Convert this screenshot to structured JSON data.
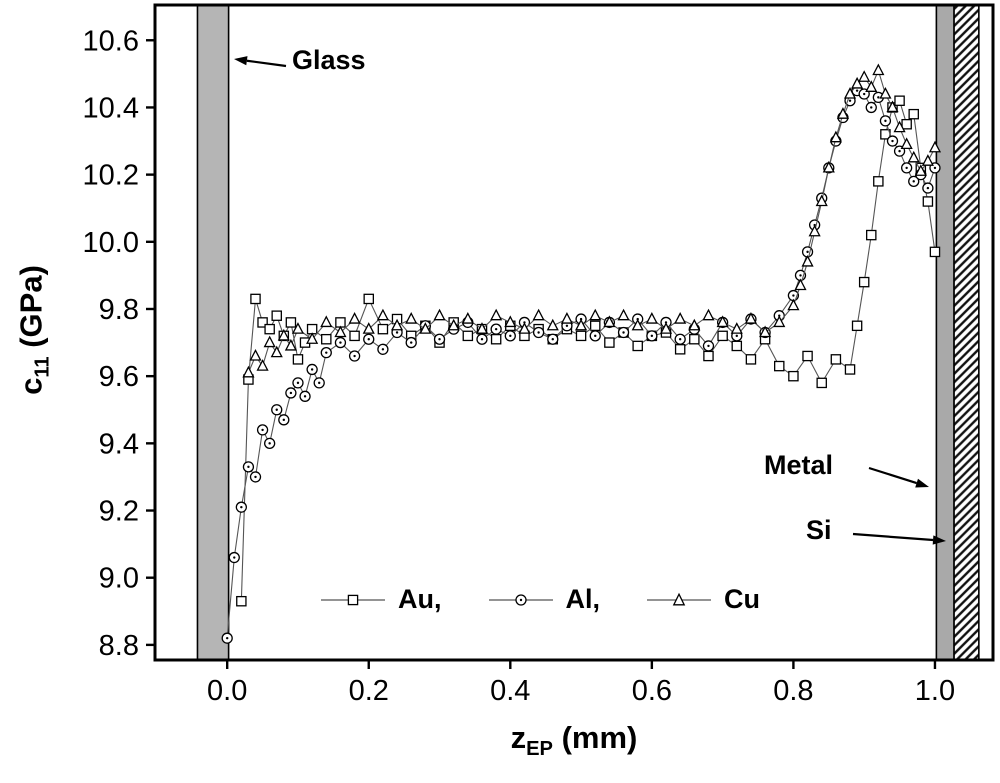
{
  "chart_data": {
    "type": "scatter",
    "title": "",
    "ylabel_main": "c",
    "ylabel_sub": "11",
    "ylabel_rest": "  (GPa)",
    "xlabel_main": "z",
    "xlabel_sub": "EP",
    "xlabel_rest": "  (mm)",
    "xlim": [
      -0.102,
      1.082
    ],
    "ylim": [
      8.755,
      10.705
    ],
    "x_ticks": [
      {
        "v": 0.0,
        "label": "0.0"
      },
      {
        "v": 0.2,
        "label": "0.2"
      },
      {
        "v": 0.4,
        "label": "0.4"
      },
      {
        "v": 0.6,
        "label": "0.6"
      },
      {
        "v": 0.8,
        "label": "0.8"
      },
      {
        "v": 1.0,
        "label": "1.0"
      }
    ],
    "y_ticks": [
      {
        "v": 8.8,
        "label": "8.8"
      },
      {
        "v": 9.0,
        "label": "9.0"
      },
      {
        "v": 9.2,
        "label": "9.2"
      },
      {
        "v": 9.4,
        "label": "9.4"
      },
      {
        "v": 9.6,
        "label": "9.6"
      },
      {
        "v": 9.8,
        "label": "9.8"
      },
      {
        "v": 10.0,
        "label": "10.0"
      },
      {
        "v": 10.2,
        "label": "10.2"
      },
      {
        "v": 10.4,
        "label": "10.4"
      },
      {
        "v": 10.6,
        "label": "10.6"
      }
    ],
    "bands": {
      "glass": {
        "x0": -0.042,
        "x1": 0.002,
        "fill": "#b5b5b5",
        "style": "solid"
      },
      "metal": {
        "x0": 1.002,
        "x1": 1.027,
        "fill": "#a9a9a9",
        "style": "solid"
      },
      "si": {
        "x0": 1.027,
        "x1": 1.062,
        "fill": "#ffffff",
        "style": "hatch"
      }
    },
    "annotations": {
      "glass": {
        "label": "Glass"
      },
      "metal": {
        "label": "Metal"
      },
      "si": {
        "label": "Si"
      }
    },
    "legend": [
      {
        "label": "Au,",
        "marker": "square"
      },
      {
        "label": "Al,",
        "marker": "circle-dot"
      },
      {
        "label": "Cu",
        "marker": "triangle"
      }
    ],
    "line_color": "#555555",
    "marker_color": "#000000",
    "series": [
      {
        "name": "Au",
        "marker": "square",
        "points": [
          [
            0.02,
            8.93
          ],
          [
            0.03,
            9.59
          ],
          [
            0.04,
            9.83
          ],
          [
            0.05,
            9.76
          ],
          [
            0.06,
            9.74
          ],
          [
            0.07,
            9.78
          ],
          [
            0.08,
            9.72
          ],
          [
            0.09,
            9.76
          ],
          [
            0.1,
            9.65
          ],
          [
            0.11,
            9.7
          ],
          [
            0.12,
            9.74
          ],
          [
            0.14,
            9.71
          ],
          [
            0.16,
            9.76
          ],
          [
            0.18,
            9.72
          ],
          [
            0.2,
            9.83
          ],
          [
            0.22,
            9.74
          ],
          [
            0.24,
            9.77
          ],
          [
            0.26,
            9.72
          ],
          [
            0.28,
            9.75
          ],
          [
            0.3,
            9.7
          ],
          [
            0.32,
            9.76
          ],
          [
            0.34,
            9.72
          ],
          [
            0.36,
            9.74
          ],
          [
            0.38,
            9.71
          ],
          [
            0.4,
            9.75
          ],
          [
            0.42,
            9.72
          ],
          [
            0.44,
            9.74
          ],
          [
            0.46,
            9.71
          ],
          [
            0.48,
            9.74
          ],
          [
            0.5,
            9.72
          ],
          [
            0.52,
            9.75
          ],
          [
            0.54,
            9.7
          ],
          [
            0.56,
            9.73
          ],
          [
            0.58,
            9.69
          ],
          [
            0.6,
            9.72
          ],
          [
            0.62,
            9.73
          ],
          [
            0.64,
            9.68
          ],
          [
            0.66,
            9.71
          ],
          [
            0.68,
            9.66
          ],
          [
            0.7,
            9.72
          ],
          [
            0.72,
            9.69
          ],
          [
            0.74,
            9.65
          ],
          [
            0.76,
            9.71
          ],
          [
            0.78,
            9.63
          ],
          [
            0.8,
            9.6
          ],
          [
            0.82,
            9.66
          ],
          [
            0.84,
            9.58
          ],
          [
            0.86,
            9.65
          ],
          [
            0.88,
            9.62
          ],
          [
            0.89,
            9.75
          ],
          [
            0.9,
            9.88
          ],
          [
            0.91,
            10.02
          ],
          [
            0.92,
            10.18
          ],
          [
            0.93,
            10.32
          ],
          [
            0.94,
            10.4
          ],
          [
            0.95,
            10.42
          ],
          [
            0.96,
            10.35
          ],
          [
            0.97,
            10.38
          ],
          [
            0.98,
            10.22
          ],
          [
            0.99,
            10.12
          ],
          [
            1.0,
            9.97
          ]
        ]
      },
      {
        "name": "Al",
        "marker": "circle-dot",
        "points": [
          [
            0.0,
            8.82
          ],
          [
            0.01,
            9.06
          ],
          [
            0.02,
            9.21
          ],
          [
            0.03,
            9.33
          ],
          [
            0.04,
            9.3
          ],
          [
            0.05,
            9.44
          ],
          [
            0.06,
            9.4
          ],
          [
            0.07,
            9.5
          ],
          [
            0.08,
            9.47
          ],
          [
            0.09,
            9.55
          ],
          [
            0.1,
            9.58
          ],
          [
            0.11,
            9.54
          ],
          [
            0.12,
            9.62
          ],
          [
            0.13,
            9.58
          ],
          [
            0.14,
            9.67
          ],
          [
            0.16,
            9.7
          ],
          [
            0.18,
            9.66
          ],
          [
            0.2,
            9.71
          ],
          [
            0.22,
            9.68
          ],
          [
            0.24,
            9.73
          ],
          [
            0.26,
            9.7
          ],
          [
            0.28,
            9.75
          ],
          [
            0.3,
            9.71
          ],
          [
            0.32,
            9.74
          ],
          [
            0.34,
            9.76
          ],
          [
            0.36,
            9.71
          ],
          [
            0.38,
            9.74
          ],
          [
            0.4,
            9.72
          ],
          [
            0.42,
            9.76
          ],
          [
            0.44,
            9.73
          ],
          [
            0.46,
            9.71
          ],
          [
            0.48,
            9.75
          ],
          [
            0.5,
            9.77
          ],
          [
            0.52,
            9.72
          ],
          [
            0.54,
            9.76
          ],
          [
            0.56,
            9.73
          ],
          [
            0.58,
            9.77
          ],
          [
            0.6,
            9.72
          ],
          [
            0.62,
            9.76
          ],
          [
            0.64,
            9.71
          ],
          [
            0.66,
            9.74
          ],
          [
            0.68,
            9.69
          ],
          [
            0.7,
            9.76
          ],
          [
            0.72,
            9.72
          ],
          [
            0.74,
            9.77
          ],
          [
            0.76,
            9.73
          ],
          [
            0.78,
            9.78
          ],
          [
            0.8,
            9.84
          ],
          [
            0.81,
            9.9
          ],
          [
            0.82,
            9.97
          ],
          [
            0.83,
            10.05
          ],
          [
            0.84,
            10.13
          ],
          [
            0.85,
            10.22
          ],
          [
            0.86,
            10.3
          ],
          [
            0.87,
            10.37
          ],
          [
            0.88,
            10.42
          ],
          [
            0.89,
            10.45
          ],
          [
            0.9,
            10.44
          ],
          [
            0.91,
            10.4
          ],
          [
            0.92,
            10.43
          ],
          [
            0.93,
            10.36
          ],
          [
            0.94,
            10.3
          ],
          [
            0.95,
            10.27
          ],
          [
            0.96,
            10.22
          ],
          [
            0.97,
            10.18
          ],
          [
            0.98,
            10.2
          ],
          [
            0.99,
            10.16
          ],
          [
            1.0,
            10.22
          ]
        ]
      },
      {
        "name": "Cu",
        "marker": "triangle",
        "points": [
          [
            0.03,
            9.61
          ],
          [
            0.04,
            9.66
          ],
          [
            0.05,
            9.63
          ],
          [
            0.06,
            9.7
          ],
          [
            0.07,
            9.67
          ],
          [
            0.08,
            9.72
          ],
          [
            0.09,
            9.69
          ],
          [
            0.1,
            9.74
          ],
          [
            0.12,
            9.71
          ],
          [
            0.14,
            9.76
          ],
          [
            0.16,
            9.73
          ],
          [
            0.18,
            9.77
          ],
          [
            0.2,
            9.74
          ],
          [
            0.22,
            9.78
          ],
          [
            0.24,
            9.75
          ],
          [
            0.26,
            9.77
          ],
          [
            0.28,
            9.74
          ],
          [
            0.3,
            9.78
          ],
          [
            0.32,
            9.75
          ],
          [
            0.34,
            9.77
          ],
          [
            0.36,
            9.74
          ],
          [
            0.38,
            9.78
          ],
          [
            0.4,
            9.76
          ],
          [
            0.42,
            9.74
          ],
          [
            0.44,
            9.78
          ],
          [
            0.46,
            9.75
          ],
          [
            0.48,
            9.77
          ],
          [
            0.5,
            9.75
          ],
          [
            0.52,
            9.78
          ],
          [
            0.54,
            9.76
          ],
          [
            0.56,
            9.78
          ],
          [
            0.58,
            9.75
          ],
          [
            0.6,
            9.77
          ],
          [
            0.62,
            9.74
          ],
          [
            0.64,
            9.77
          ],
          [
            0.66,
            9.75
          ],
          [
            0.68,
            9.78
          ],
          [
            0.7,
            9.76
          ],
          [
            0.72,
            9.74
          ],
          [
            0.74,
            9.77
          ],
          [
            0.76,
            9.73
          ],
          [
            0.78,
            9.76
          ],
          [
            0.8,
            9.81
          ],
          [
            0.81,
            9.87
          ],
          [
            0.82,
            9.94
          ],
          [
            0.83,
            10.03
          ],
          [
            0.84,
            10.12
          ],
          [
            0.85,
            10.22
          ],
          [
            0.86,
            10.31
          ],
          [
            0.87,
            10.38
          ],
          [
            0.88,
            10.44
          ],
          [
            0.89,
            10.47
          ],
          [
            0.9,
            10.49
          ],
          [
            0.91,
            10.46
          ],
          [
            0.92,
            10.51
          ],
          [
            0.93,
            10.44
          ],
          [
            0.94,
            10.4
          ],
          [
            0.95,
            10.34
          ],
          [
            0.96,
            10.29
          ],
          [
            0.97,
            10.25
          ],
          [
            0.98,
            10.21
          ],
          [
            0.99,
            10.24
          ],
          [
            1.0,
            10.28
          ]
        ]
      }
    ]
  }
}
